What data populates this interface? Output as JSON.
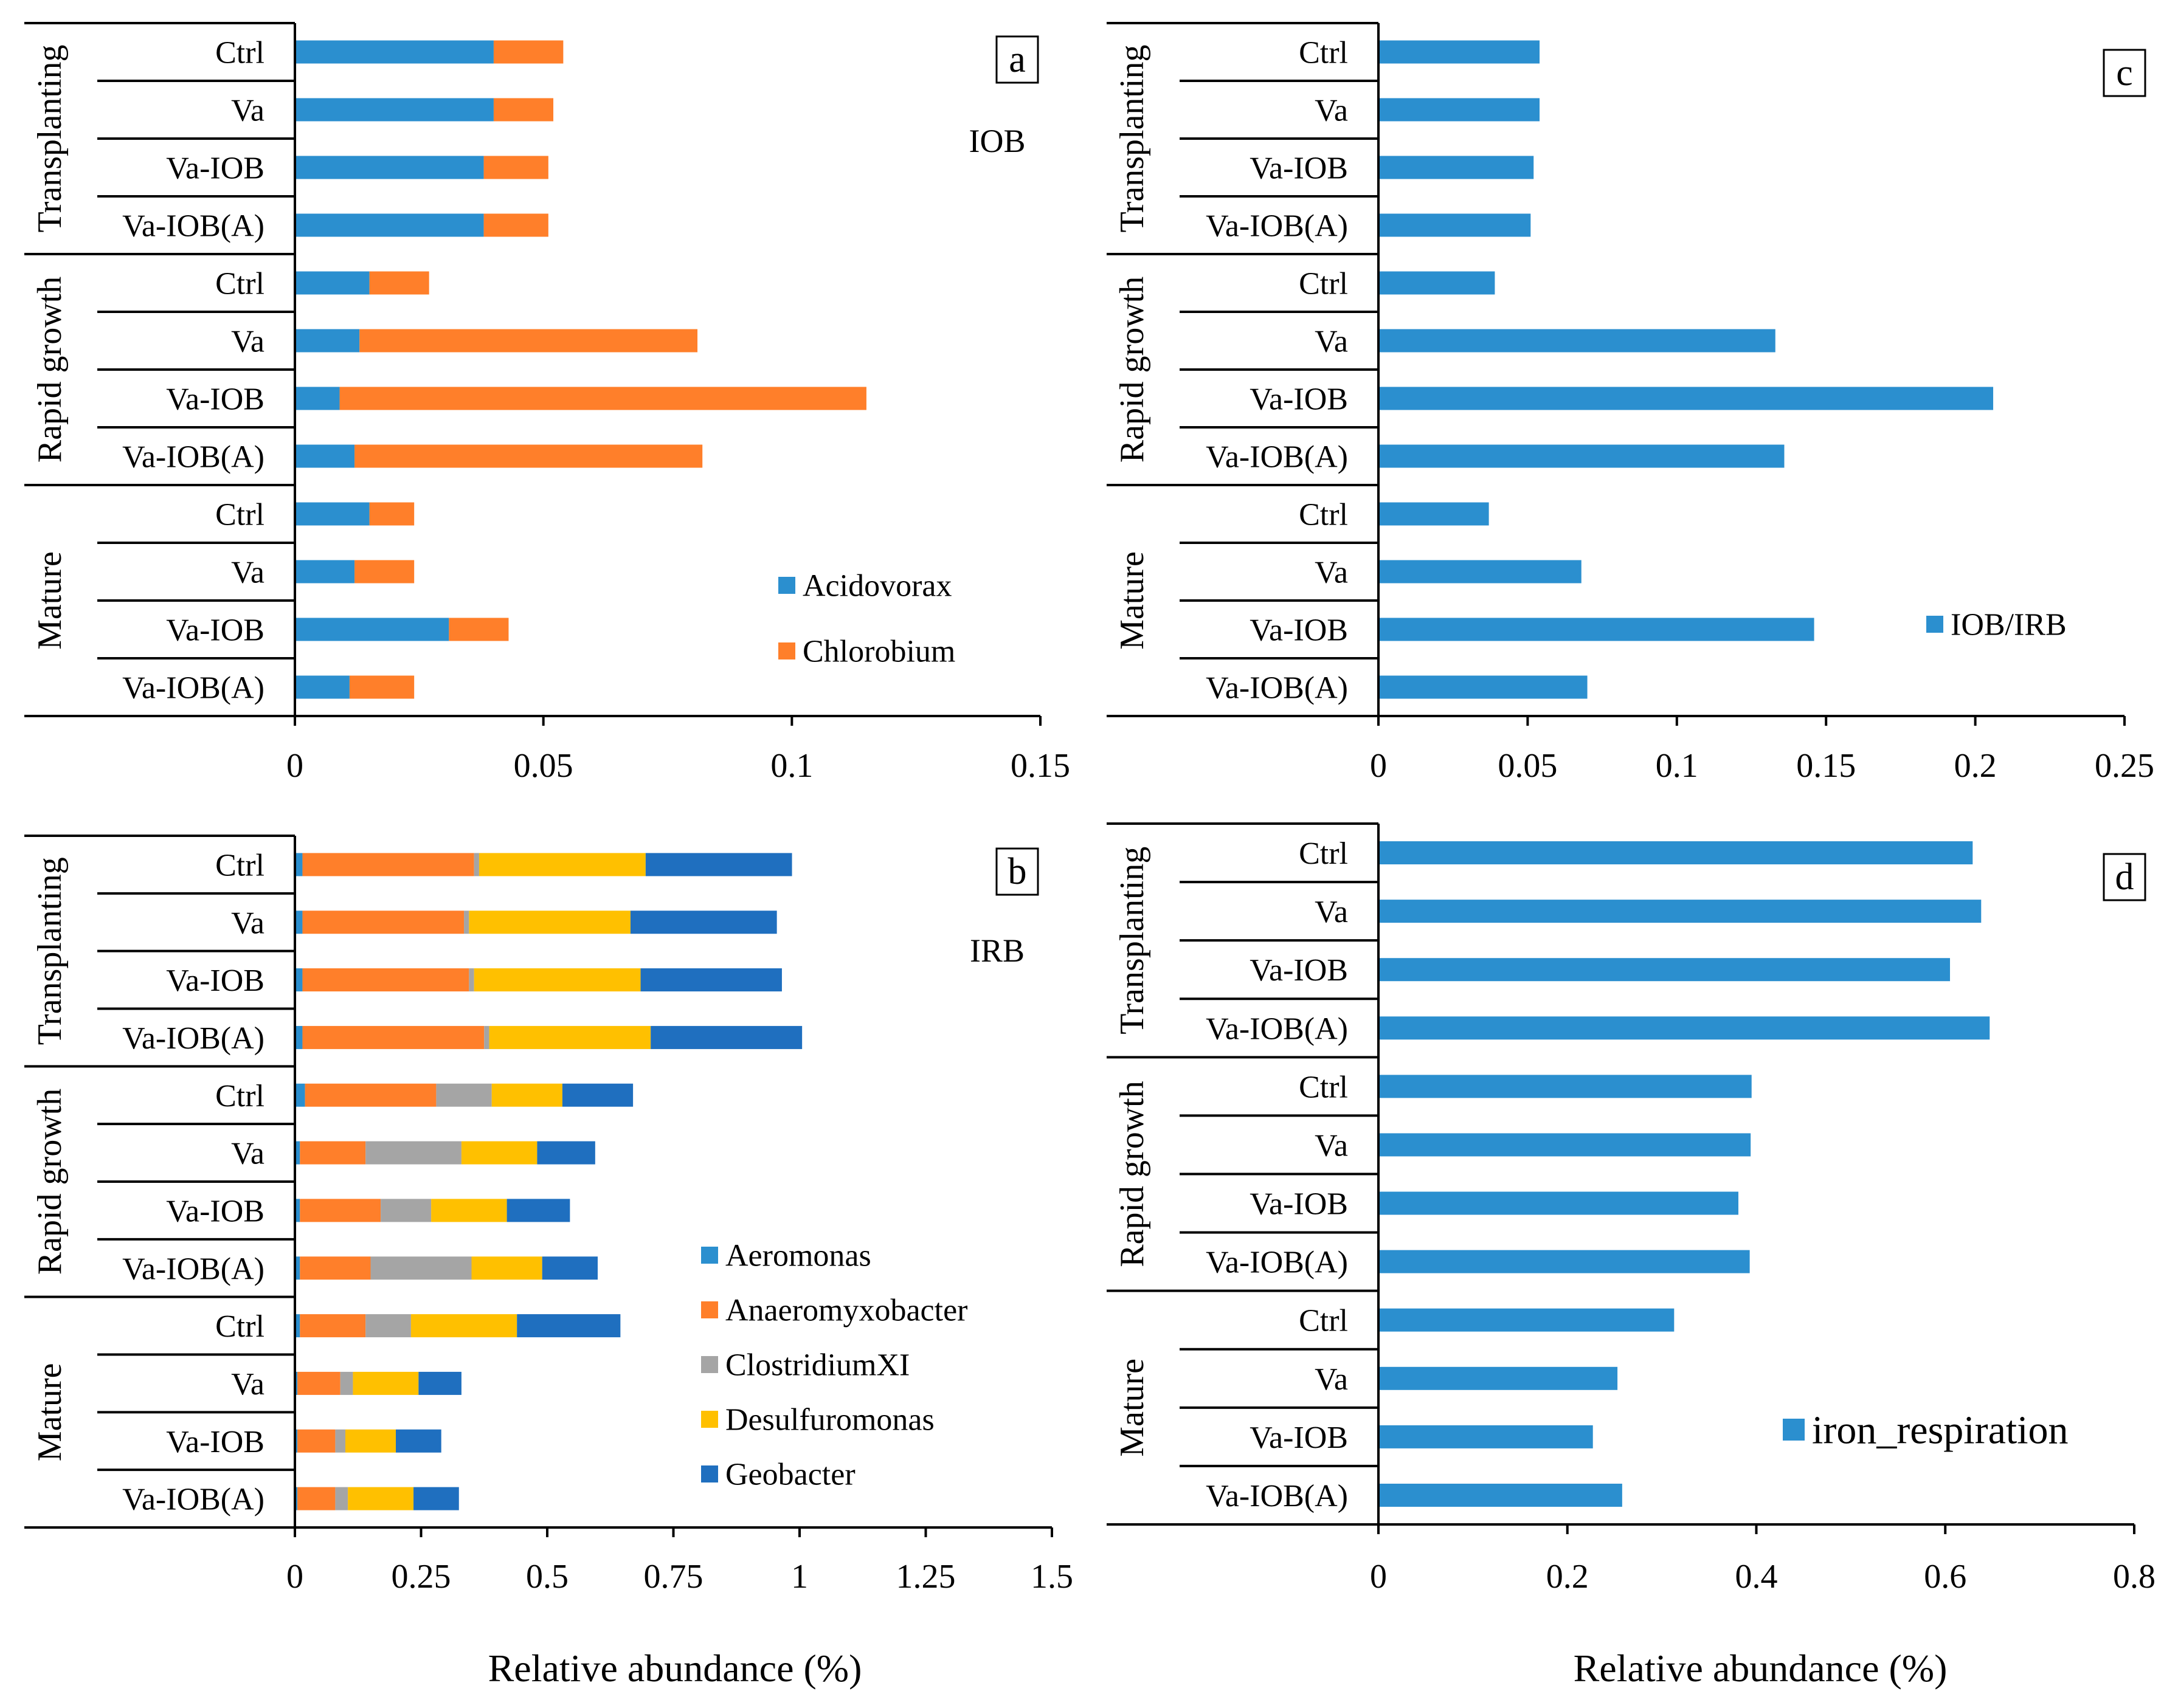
{
  "figure": {
    "xlabel_left": "Relative abundance (%)",
    "xlabel_right": "Relative abundance (%)"
  },
  "colors": {
    "blue": "#2b8fcf",
    "orange": "#ff7f2a",
    "gray": "#a5a5a5",
    "yellow": "#ffc000",
    "darkblue": "#1f6fbf"
  },
  "chart_data": [
    {
      "id": "a",
      "type": "bar",
      "stacked": true,
      "orientation": "horizontal",
      "panel_label": "a",
      "annotation": "IOB",
      "groups": [
        "Transplanting",
        "Rapid growth",
        "Mature"
      ],
      "categories": [
        "Ctrl",
        "Va",
        "Va-IOB",
        "Va-IOB(A)",
        "Ctrl",
        "Va",
        "Va-IOB",
        "Va-IOB(A)",
        "Ctrl",
        "Va",
        "Va-IOB",
        "Va-IOB(A)"
      ],
      "series": [
        {
          "name": "Acidovorax",
          "color": "#2b8fcf",
          "values": [
            0.04,
            0.04,
            0.038,
            0.038,
            0.015,
            0.013,
            0.009,
            0.012,
            0.015,
            0.012,
            0.031,
            0.011
          ]
        },
        {
          "name": "Chlorobium",
          "color": "#ff7f2a",
          "values": [
            0.014,
            0.012,
            0.013,
            0.013,
            0.012,
            0.068,
            0.106,
            0.07,
            0.009,
            0.012,
            0.012,
            0.013
          ]
        }
      ],
      "xlim": [
        0,
        0.15
      ],
      "ticks": [
        0,
        0.05,
        0.1,
        0.15
      ],
      "tick_labels": [
        "0",
        "0.05",
        "0.1",
        "0.15"
      ],
      "legend": "bottom-right"
    },
    {
      "id": "b",
      "type": "bar",
      "stacked": true,
      "orientation": "horizontal",
      "panel_label": "b",
      "annotation": "IRB",
      "groups": [
        "Transplanting",
        "Rapid growth",
        "Mature"
      ],
      "categories": [
        "Ctrl",
        "Va",
        "Va-IOB",
        "Va-IOB(A)",
        "Ctrl",
        "Va",
        "Va-IOB",
        "Va-IOB(A)",
        "Ctrl",
        "Va",
        "Va-IOB",
        "Va-IOB(A)"
      ],
      "series": [
        {
          "name": "Aeromonas",
          "color": "#2b8fcf",
          "values": [
            0.015,
            0.015,
            0.015,
            0.015,
            0.02,
            0.01,
            0.01,
            0.01,
            0.01,
            0.005,
            0.005,
            0.005
          ]
        },
        {
          "name": "Anaeromyxobacter",
          "color": "#ff7f2a",
          "values": [
            0.34,
            0.32,
            0.33,
            0.36,
            0.26,
            0.13,
            0.16,
            0.14,
            0.13,
            0.085,
            0.075,
            0.075
          ]
        },
        {
          "name": "ClostridiumXI",
          "color": "#a5a5a5",
          "values": [
            0.01,
            0.01,
            0.01,
            0.01,
            0.11,
            0.19,
            0.1,
            0.2,
            0.09,
            0.025,
            0.02,
            0.025
          ]
        },
        {
          "name": "Desulfuromonas",
          "color": "#ffc000",
          "values": [
            0.33,
            0.32,
            0.33,
            0.32,
            0.14,
            0.15,
            0.15,
            0.14,
            0.21,
            0.13,
            0.1,
            0.13
          ]
        },
        {
          "name": "Geobacter",
          "color": "#1f6fbf",
          "values": [
            0.29,
            0.29,
            0.28,
            0.3,
            0.14,
            0.115,
            0.125,
            0.11,
            0.205,
            0.085,
            0.09,
            0.09
          ]
        }
      ],
      "xlim": [
        0,
        1.5
      ],
      "ticks": [
        0,
        0.25,
        0.5,
        0.75,
        1,
        1.25,
        1.5
      ],
      "tick_labels": [
        "0",
        "0.25",
        "0.5",
        "0.75",
        "1",
        "1.25",
        "1.5"
      ],
      "legend": "bottom-right"
    },
    {
      "id": "c",
      "type": "bar",
      "stacked": false,
      "orientation": "horizontal",
      "panel_label": "c",
      "groups": [
        "Transplanting",
        "Rapid growth",
        "Mature"
      ],
      "categories": [
        "Ctrl",
        "Va",
        "Va-IOB",
        "Va-IOB(A)",
        "Ctrl",
        "Va",
        "Va-IOB",
        "Va-IOB(A)",
        "Ctrl",
        "Va",
        "Va-IOB",
        "Va-IOB(A)"
      ],
      "series": [
        {
          "name": "IOB/IRB",
          "color": "#2b8fcf",
          "values": [
            0.054,
            0.054,
            0.052,
            0.051,
            0.039,
            0.133,
            0.206,
            0.136,
            0.037,
            0.068,
            0.146,
            0.07
          ]
        }
      ],
      "xlim": [
        0,
        0.25
      ],
      "ticks": [
        0,
        0.05,
        0.1,
        0.15,
        0.2,
        0.25
      ],
      "tick_labels": [
        "0",
        "0.05",
        "0.1",
        "0.15",
        "0.2",
        "0.25"
      ],
      "legend": "bottom-right"
    },
    {
      "id": "d",
      "type": "bar",
      "stacked": false,
      "orientation": "horizontal",
      "panel_label": "d",
      "groups": [
        "Transplanting",
        "Rapid growth",
        "Mature"
      ],
      "categories": [
        "Ctrl",
        "Va",
        "Va-IOB",
        "Va-IOB(A)",
        "Ctrl",
        "Va",
        "Va-IOB",
        "Va-IOB(A)",
        "Ctrl",
        "Va",
        "Va-IOB",
        "Va-IOB(A)"
      ],
      "series": [
        {
          "name": "iron_respiration",
          "color": "#2b8fcf",
          "values": [
            0.629,
            0.638,
            0.605,
            0.647,
            0.395,
            0.394,
            0.381,
            0.393,
            0.313,
            0.253,
            0.227,
            0.258
          ]
        }
      ],
      "xlim": [
        0,
        0.8
      ],
      "ticks": [
        0,
        0.2,
        0.4,
        0.6,
        0.8
      ],
      "tick_labels": [
        "0",
        "0.2",
        "0.4",
        "0.6",
        "0.8"
      ],
      "legend": "bottom-right"
    }
  ]
}
